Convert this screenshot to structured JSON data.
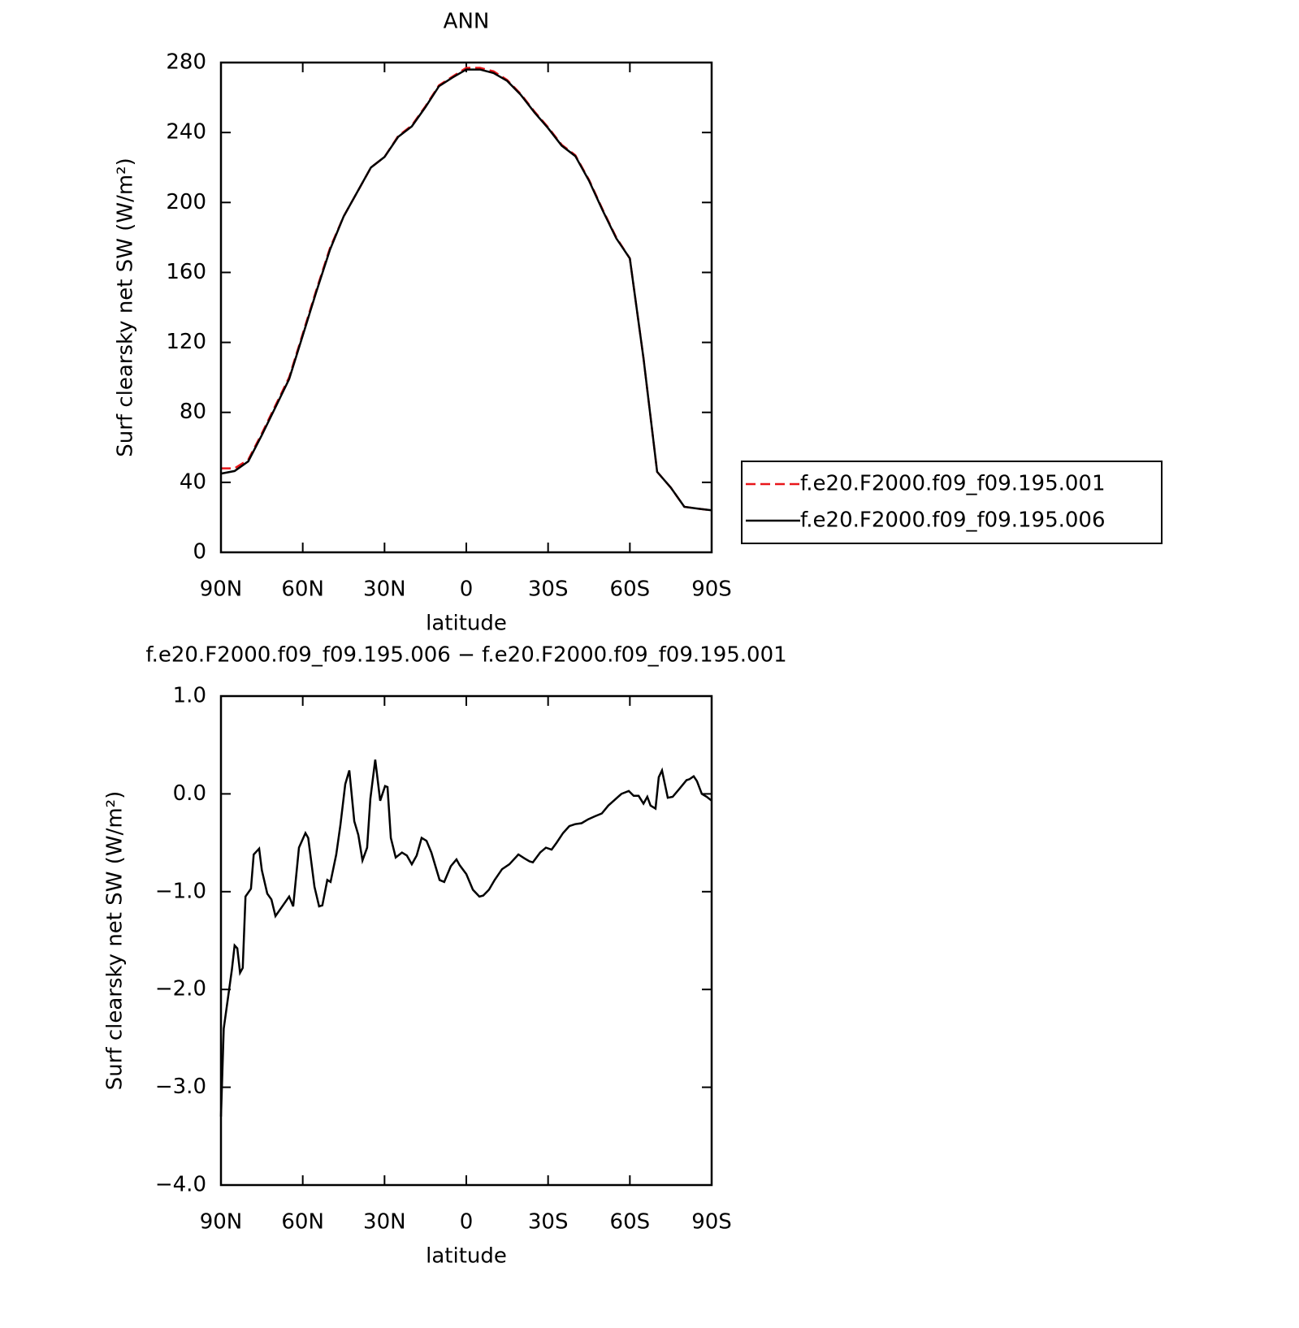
{
  "chart_data": [
    {
      "type": "line",
      "title": "ANN",
      "xlabel": "latitude",
      "ylabel": "Surf clearsky net SW (W/m²)",
      "xlim": [
        90,
        -90
      ],
      "xticks": [
        {
          "value": 90,
          "label": "90N"
        },
        {
          "value": 60,
          "label": "60N"
        },
        {
          "value": 30,
          "label": "30N"
        },
        0,
        {
          "value": -30,
          "label": "30S"
        },
        {
          "value": -60,
          "label": "60S"
        },
        {
          "value": -90,
          "label": "90S"
        }
      ],
      "ylim": [
        0,
        280
      ],
      "yticks": [
        0,
        40,
        80,
        120,
        160,
        200,
        240,
        280
      ],
      "legend": "outside-right",
      "x": [
        90,
        85,
        80,
        75,
        70,
        65,
        60,
        55,
        50,
        45,
        40,
        35,
        30,
        25,
        20,
        15,
        10,
        5,
        0,
        -5,
        -10,
        -15,
        -20,
        -25,
        -30,
        -35,
        -40,
        -45,
        -50,
        -55,
        -60,
        -65,
        -70,
        -75,
        -80,
        -85,
        -90
      ],
      "series": [
        {
          "name": "f.e20.F2000.f09_f09.195.001",
          "color": "#e8161a",
          "linestyle": "dashed",
          "values": [
            48,
            48,
            53,
            68,
            84,
            100,
            125,
            150,
            174,
            192,
            206,
            220,
            226,
            238,
            244,
            255,
            267,
            272,
            277,
            277,
            275,
            270,
            262,
            252,
            243,
            233,
            227,
            213,
            196,
            180,
            168,
            111,
            46,
            37,
            26,
            25,
            24
          ]
        },
        {
          "name": "f.e20.F2000.f09_f09.195.006",
          "color": "#000000",
          "linestyle": "solid",
          "values": [
            45,
            46.5,
            52,
            67,
            83,
            99,
            124,
            149,
            173,
            192,
            206,
            220,
            226,
            237.5,
            243.5,
            254.5,
            266.5,
            271.5,
            276,
            276,
            274,
            269.5,
            261.5,
            251.5,
            242.5,
            232.5,
            226.5,
            212.5,
            195.5,
            179.5,
            168,
            111,
            46,
            37,
            26,
            25,
            24
          ]
        }
      ]
    },
    {
      "type": "line",
      "title": "f.e20.F2000.f09_f09.195.006 − f.e20.F2000.f09_f09.195.001",
      "xlabel": "latitude",
      "ylabel": "Surf clearsky net SW (W/m²)",
      "xlim": [
        90,
        -90
      ],
      "xticks": [
        {
          "value": 90,
          "label": "90N"
        },
        {
          "value": 60,
          "label": "60N"
        },
        {
          "value": 30,
          "label": "30N"
        },
        0,
        {
          "value": -30,
          "label": "30S"
        },
        {
          "value": -60,
          "label": "60S"
        },
        {
          "value": -90,
          "label": "90S"
        }
      ],
      "ylim": [
        -4,
        1
      ],
      "yticks": [
        {
          "value": -4,
          "label": "−4.0"
        },
        {
          "value": -3,
          "label": "−3.0"
        },
        {
          "value": -2,
          "label": "−2.0"
        },
        {
          "value": -1,
          "label": "−1.0"
        },
        {
          "value": 0,
          "label": "0.0"
        },
        {
          "value": 1,
          "label": "1.0"
        }
      ],
      "x": [
        90,
        89,
        86,
        85,
        84,
        83,
        82,
        81,
        79,
        78,
        76,
        75,
        73,
        71.5,
        70,
        68,
        65,
        63.5,
        61.4,
        59,
        58,
        55.7,
        54,
        52.8,
        51,
        49.8,
        47.7,
        46.2,
        44.4,
        42.9,
        41.1,
        39.6,
        38.1,
        36.4,
        35.2,
        33.4,
        31.6,
        29.8,
        28.9,
        27.7,
        25.9,
        23.6,
        21.8,
        20,
        18.2,
        16.4,
        14.6,
        12.8,
        9.8,
        8.1,
        5.7,
        3.6,
        2.4,
        0,
        -2.4,
        -4.8,
        -6.2,
        -8.3,
        -10.4,
        -13.1,
        -15.8,
        -19.1,
        -21.4,
        -23.2,
        -24.4,
        -27.1,
        -29.2,
        -31.3,
        -33.1,
        -35.5,
        -37.8,
        -39.9,
        -42.3,
        -44.7,
        -47.1,
        -49.7,
        -52.1,
        -54.5,
        -56.9,
        -59.6,
        -61.4,
        -63.2,
        -65,
        -66.4,
        -67.6,
        -69.4,
        -70.6,
        -71.8,
        -73.9,
        -75.7,
        -78.1,
        -80.8,
        -81.9,
        -83.4,
        -84.6,
        -86.4,
        -88.2,
        -90
      ],
      "series": [
        {
          "color": "#000000",
          "linestyle": "solid",
          "values": [
            -3.3,
            -2.4,
            -1.8,
            -1.55,
            -1.58,
            -1.83,
            -1.78,
            -1.05,
            -0.97,
            -0.62,
            -0.56,
            -0.78,
            -1.02,
            -1.08,
            -1.25,
            -1.17,
            -1.05,
            -1.15,
            -0.55,
            -0.4,
            -0.45,
            -0.95,
            -1.15,
            -1.14,
            -0.88,
            -0.9,
            -0.62,
            -0.32,
            0.1,
            0.24,
            -0.28,
            -0.42,
            -0.68,
            -0.55,
            -0.05,
            0.35,
            -0.07,
            0.08,
            0.07,
            -0.45,
            -0.65,
            -0.6,
            -0.63,
            -0.72,
            -0.63,
            -0.45,
            -0.48,
            -0.6,
            -0.88,
            -0.9,
            -0.74,
            -0.67,
            -0.73,
            -0.82,
            -0.98,
            -1.05,
            -1.04,
            -0.98,
            -0.88,
            -0.77,
            -0.72,
            -0.62,
            -0.66,
            -0.69,
            -0.7,
            -0.6,
            -0.55,
            -0.57,
            -0.5,
            -0.4,
            -0.33,
            -0.31,
            -0.3,
            -0.26,
            -0.23,
            -0.2,
            -0.12,
            -0.06,
            0,
            0.03,
            -0.02,
            -0.02,
            -0.1,
            -0.03,
            -0.12,
            -0.15,
            0.17,
            0.24,
            -0.04,
            -0.03,
            0.05,
            0.14,
            0.15,
            0.18,
            0.13,
            0,
            -0.03,
            -0.07
          ]
        }
      ]
    }
  ]
}
